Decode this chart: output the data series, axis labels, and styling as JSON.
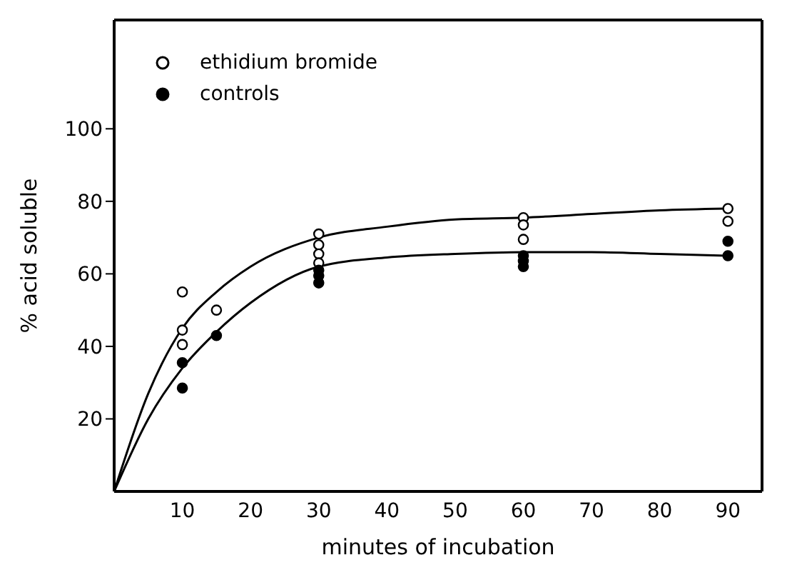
{
  "chart_data": {
    "type": "scatter",
    "xlabel": "minutes of incubation",
    "ylabel": "% acid soluble",
    "xlim": [
      0,
      95
    ],
    "ylim": [
      0,
      130
    ],
    "xticks": [
      10,
      20,
      30,
      40,
      50,
      60,
      70,
      80,
      90
    ],
    "yticks": [
      20,
      40,
      60,
      80,
      100
    ],
    "grid": false,
    "legend": "top left",
    "series": [
      {
        "name": "ethidium bromide",
        "color": "#ffffff",
        "marker": "circle",
        "x": [
          10,
          10,
          10,
          15,
          30,
          30,
          30,
          30,
          60,
          60,
          60,
          90,
          90
        ],
        "values": [
          55,
          44.5,
          40.5,
          50,
          71,
          68,
          65.5,
          63,
          75.5,
          73.5,
          69.5,
          78,
          74.5
        ]
      },
      {
        "name": "controls",
        "color": "#000000",
        "marker": "circle",
        "x": [
          10,
          10,
          15,
          30,
          30,
          30,
          60,
          60,
          60,
          90,
          90
        ],
        "values": [
          35.5,
          28.5,
          43,
          61,
          59.5,
          57.5,
          65,
          63.5,
          62,
          69,
          65
        ]
      },
      {
        "type": "line",
        "color": "#000000",
        "marker": "none",
        "x": [
          0,
          5,
          10,
          15,
          20,
          30,
          40,
          50,
          60,
          70,
          80,
          90
        ],
        "values": [
          0,
          27,
          45,
          55,
          62,
          70,
          73,
          75,
          75.5,
          76.5,
          77.5,
          78
        ]
      },
      {
        "type": "line",
        "color": "#000000",
        "marker": "none",
        "x": [
          0,
          5,
          10,
          15,
          20,
          30,
          40,
          50,
          60,
          70,
          80,
          90
        ],
        "values": [
          0,
          20,
          34,
          44,
          52,
          62,
          64.5,
          65.5,
          66,
          66,
          65.5,
          65
        ]
      }
    ]
  }
}
